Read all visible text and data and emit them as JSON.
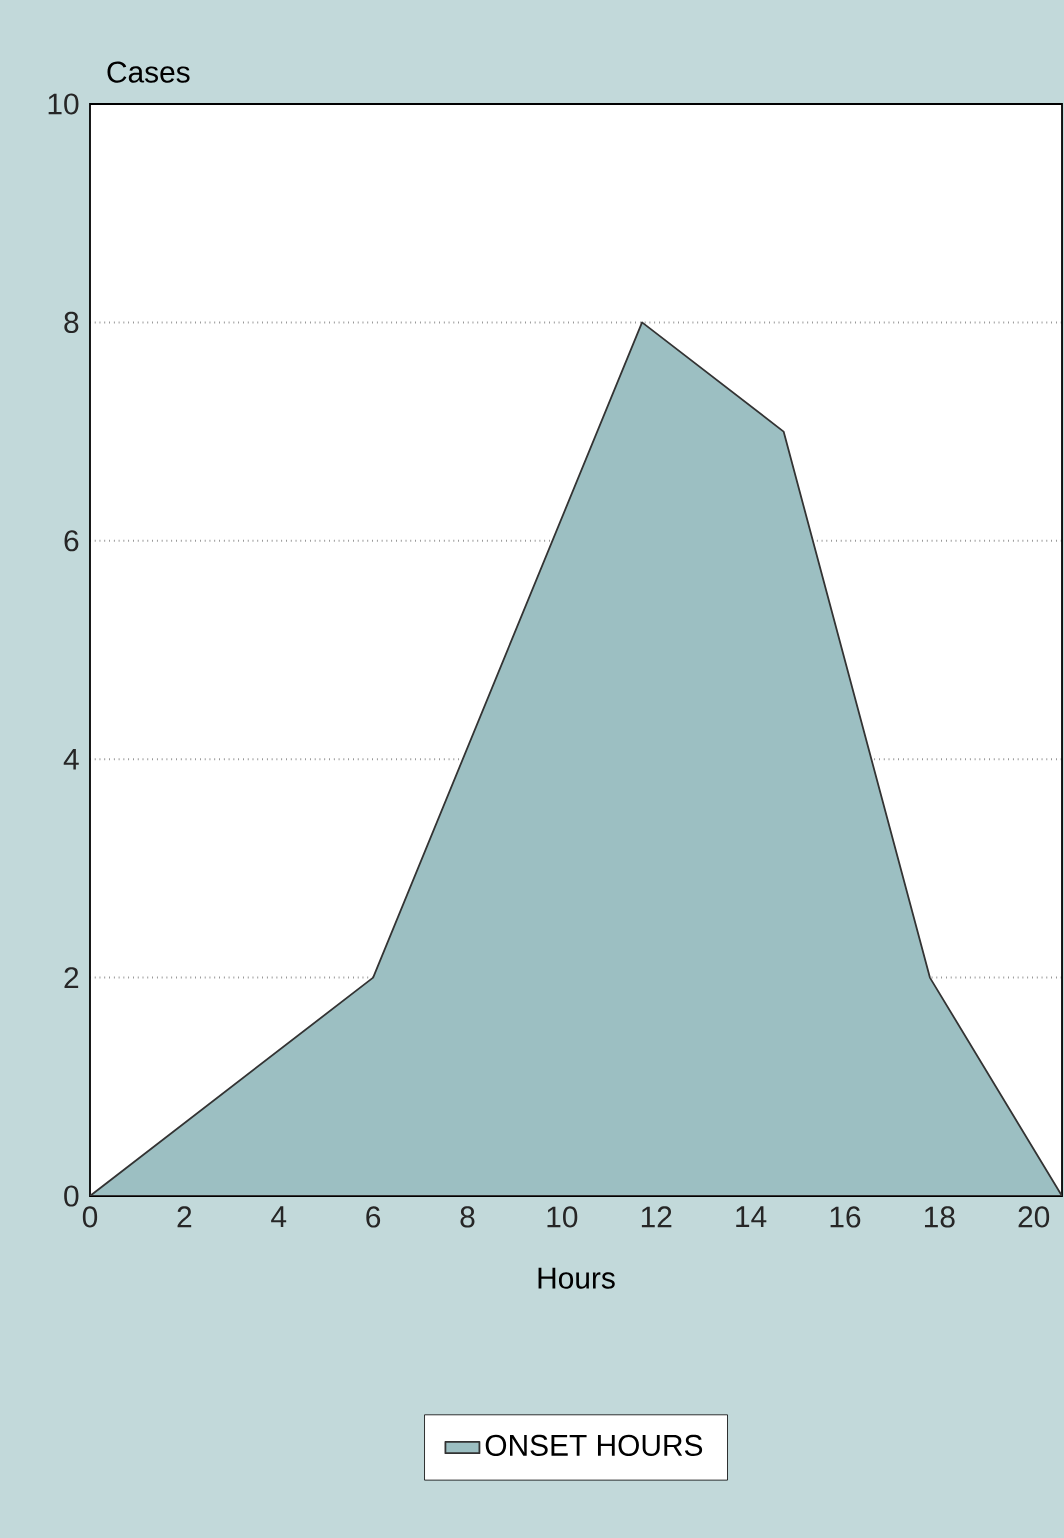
{
  "chart_data": {
    "type": "area",
    "ylabel": "Cases",
    "xlabel": "Hours",
    "x": [
      0,
      6,
      11.7,
      14.7,
      17.8,
      20.6
    ],
    "series": [
      {
        "name": "ONSET HOURS",
        "color": "#9cbfc2",
        "values": [
          0,
          2,
          8,
          7,
          2,
          0
        ]
      }
    ],
    "xlim": [
      0,
      20.6
    ],
    "xticks": [
      0,
      2,
      4,
      6,
      8,
      10,
      12,
      14,
      16,
      18,
      20
    ],
    "ylim": [
      0,
      10
    ],
    "yticks": [
      0,
      2,
      4,
      6,
      8,
      10
    ],
    "grid": "y",
    "legend": "bottom"
  }
}
